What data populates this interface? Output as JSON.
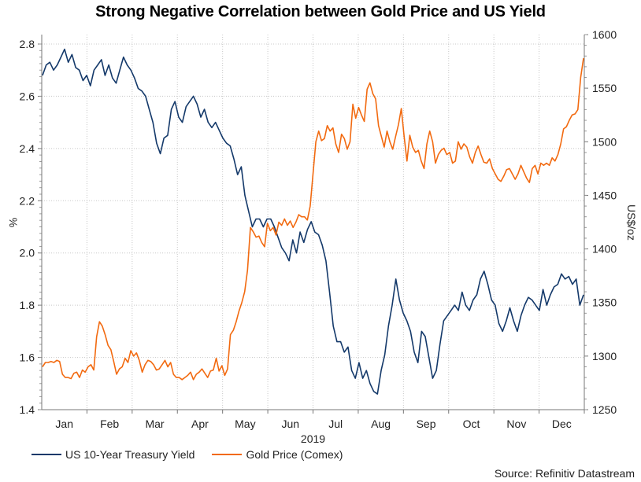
{
  "chart_data": {
    "type": "line",
    "title": "Strong Negative Correlation between Gold Price and US Yield",
    "xlabel": "2019",
    "x_ticks": [
      "Jan",
      "Feb",
      "Mar",
      "Apr",
      "May",
      "Jun",
      "Jul",
      "Aug",
      "Sep",
      "Oct",
      "Nov",
      "Dec"
    ],
    "left_axis": {
      "label": "%",
      "ylim": [
        1.4,
        2.8
      ],
      "ticks": [
        "1.4",
        "1.6",
        "1.8",
        "2.0",
        "2.2",
        "2.4",
        "2.6",
        "2.8"
      ]
    },
    "right_axis": {
      "label": "US$/oz",
      "ylim": [
        1250,
        1600
      ],
      "ticks": [
        "1250",
        "1300",
        "1350",
        "1400",
        "1450",
        "1500",
        "1550",
        "1600"
      ]
    },
    "grid": true,
    "legend_position": "bottom-left",
    "series": [
      {
        "name": "US 10-Year Treasury Yield",
        "axis": "left",
        "color": "#14396a",
        "values": [
          2.68,
          2.72,
          2.73,
          2.7,
          2.72,
          2.75,
          2.78,
          2.73,
          2.76,
          2.71,
          2.7,
          2.66,
          2.68,
          2.64,
          2.7,
          2.72,
          2.74,
          2.68,
          2.72,
          2.67,
          2.65,
          2.7,
          2.75,
          2.72,
          2.7,
          2.67,
          2.63,
          2.62,
          2.6,
          2.55,
          2.5,
          2.42,
          2.38,
          2.44,
          2.45,
          2.55,
          2.58,
          2.52,
          2.5,
          2.56,
          2.58,
          2.6,
          2.57,
          2.52,
          2.55,
          2.5,
          2.48,
          2.5,
          2.47,
          2.44,
          2.42,
          2.41,
          2.36,
          2.3,
          2.33,
          2.22,
          2.16,
          2.1,
          2.13,
          2.13,
          2.1,
          2.13,
          2.13,
          2.1,
          2.06,
          2.02,
          2.0,
          1.97,
          2.05,
          2.0,
          2.08,
          2.04,
          2.09,
          2.12,
          2.08,
          2.07,
          2.03,
          1.97,
          1.85,
          1.72,
          1.66,
          1.66,
          1.62,
          1.64,
          1.55,
          1.52,
          1.58,
          1.52,
          1.55,
          1.5,
          1.47,
          1.46,
          1.55,
          1.61,
          1.72,
          1.8,
          1.9,
          1.82,
          1.77,
          1.74,
          1.7,
          1.62,
          1.58,
          1.7,
          1.68,
          1.6,
          1.52,
          1.55,
          1.65,
          1.74,
          1.76,
          1.78,
          1.8,
          1.78,
          1.85,
          1.8,
          1.78,
          1.82,
          1.84,
          1.9,
          1.93,
          1.88,
          1.82,
          1.8,
          1.73,
          1.7,
          1.74,
          1.79,
          1.74,
          1.7,
          1.76,
          1.8,
          1.83,
          1.82,
          1.8,
          1.78,
          1.86,
          1.8,
          1.84,
          1.87,
          1.88,
          1.92,
          1.9,
          1.91,
          1.88,
          1.9,
          1.8,
          1.84
        ]
      },
      {
        "name": "Gold Price (Comex)",
        "axis": "right",
        "color": "#f26a10",
        "values": [
          1290,
          1294,
          1294,
          1295,
          1294,
          1296,
          1295,
          1283,
          1280,
          1280,
          1279,
          1284,
          1285,
          1280,
          1287,
          1285,
          1290,
          1292,
          1287,
          1318,
          1332,
          1328,
          1320,
          1310,
          1306,
          1295,
          1283,
          1288,
          1290,
          1298,
          1294,
          1305,
          1300,
          1303,
          1296,
          1285,
          1292,
          1296,
          1295,
          1292,
          1287,
          1288,
          1292,
          1296,
          1290,
          1294,
          1283,
          1280,
          1280,
          1278,
          1280,
          1282,
          1285,
          1278,
          1283,
          1285,
          1288,
          1284,
          1280,
          1286,
          1287,
          1298,
          1286,
          1291,
          1282,
          1288,
          1320,
          1324,
          1332,
          1342,
          1350,
          1360,
          1380,
          1420,
          1416,
          1411,
          1412,
          1406,
          1402,
          1424,
          1417,
          1420,
          1413,
          1425,
          1422,
          1428,
          1422,
          1426,
          1420,
          1425,
          1432,
          1430,
          1430,
          1427,
          1440,
          1470,
          1500,
          1510,
          1501,
          1503,
          1515,
          1510,
          1513,
          1498,
          1490,
          1507,
          1503,
          1493,
          1500,
          1535,
          1522,
          1532,
          1525,
          1519,
          1549,
          1555,
          1545,
          1540,
          1515,
          1505,
          1495,
          1510,
          1500,
          1493,
          1505,
          1516,
          1531,
          1505,
          1482,
          1506,
          1495,
          1490,
          1492,
          1482,
          1475,
          1498,
          1510,
          1500,
          1480,
          1488,
          1492,
          1494,
          1488,
          1490,
          1480,
          1482,
          1500,
          1493,
          1498,
          1495,
          1486,
          1480,
          1490,
          1496,
          1488,
          1481,
          1480,
          1484,
          1475,
          1470,
          1465,
          1463,
          1468,
          1474,
          1475,
          1470,
          1465,
          1470,
          1478,
          1472,
          1466,
          1462,
          1475,
          1478,
          1470,
          1480,
          1478,
          1480,
          1478,
          1485,
          1482,
          1488,
          1498,
          1512,
          1514,
          1520,
          1525,
          1526,
          1530,
          1560,
          1578
        ]
      }
    ]
  },
  "legend": {
    "items": [
      {
        "label": "US 10-Year Treasury Yield",
        "color": "#14396a"
      },
      {
        "label": "Gold Price (Comex)",
        "color": "#f26a10"
      }
    ]
  },
  "source": "Source: Refinitiv Datastream"
}
